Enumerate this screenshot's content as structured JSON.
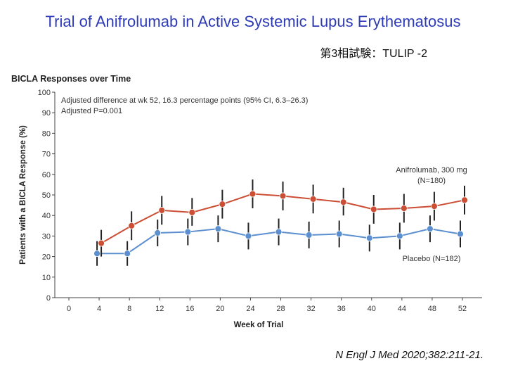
{
  "slide": {
    "title": "Trial of Anifrolumab in Active Systemic Lupus Erythematosus",
    "subtitle": "第3相試験：TULIP -2",
    "citation": "N Engl J Med 2020;382:211-21."
  },
  "chart_data": {
    "type": "line",
    "title": "BICLA Responses over Time",
    "xlabel": "Week of Trial",
    "ylabel": "Patients with a BICLA Response (%)",
    "xlim": [
      0,
      52
    ],
    "ylim": [
      0,
      100
    ],
    "x_ticks": [
      0,
      4,
      8,
      12,
      16,
      20,
      24,
      28,
      32,
      36,
      40,
      44,
      48,
      52
    ],
    "y_ticks": [
      0,
      10,
      20,
      30,
      40,
      50,
      60,
      70,
      80,
      90,
      100
    ],
    "annotation_lines": [
      "Adjusted difference at wk 52, 16.3 percentage points (95% CI, 6.3–26.3)",
      "Adjusted P=0.001"
    ],
    "series": [
      {
        "name": "Anifrolumab, 300 mg",
        "n_label": "(N=180)",
        "color": "#cc4e35",
        "x": [
          4,
          8,
          12,
          16,
          20,
          24,
          28,
          32,
          36,
          40,
          44,
          48,
          52
        ],
        "values": [
          26.5,
          35,
          42.5,
          41.5,
          45.5,
          50.5,
          49.5,
          48,
          46.5,
          43,
          43.5,
          44.5,
          47.5
        ],
        "lower": [
          20,
          28,
          35.5,
          35,
          38.5,
          43.5,
          42.5,
          41,
          40,
          36,
          36.5,
          37.5,
          40.5
        ],
        "upper": [
          33,
          42,
          49.5,
          48.5,
          52.5,
          57.5,
          56.5,
          55,
          53.5,
          50,
          50.5,
          51.5,
          54.5
        ]
      },
      {
        "name": "Placebo (N=182)",
        "color": "#5b8fcf",
        "x": [
          4,
          8,
          12,
          16,
          20,
          24,
          28,
          32,
          36,
          40,
          44,
          48,
          52
        ],
        "values": [
          21.5,
          21.5,
          31.5,
          32,
          33.5,
          30,
          32,
          30.5,
          31,
          29,
          30,
          33.5,
          31
        ],
        "lower": [
          15.5,
          15.5,
          25,
          25.5,
          27,
          23.5,
          25.5,
          24,
          24.5,
          22.5,
          23.5,
          27,
          24.5
        ],
        "upper": [
          27.5,
          27.5,
          38,
          38.5,
          40,
          36.5,
          38.5,
          37,
          37.5,
          35.5,
          36.5,
          40,
          37.5
        ]
      }
    ]
  }
}
